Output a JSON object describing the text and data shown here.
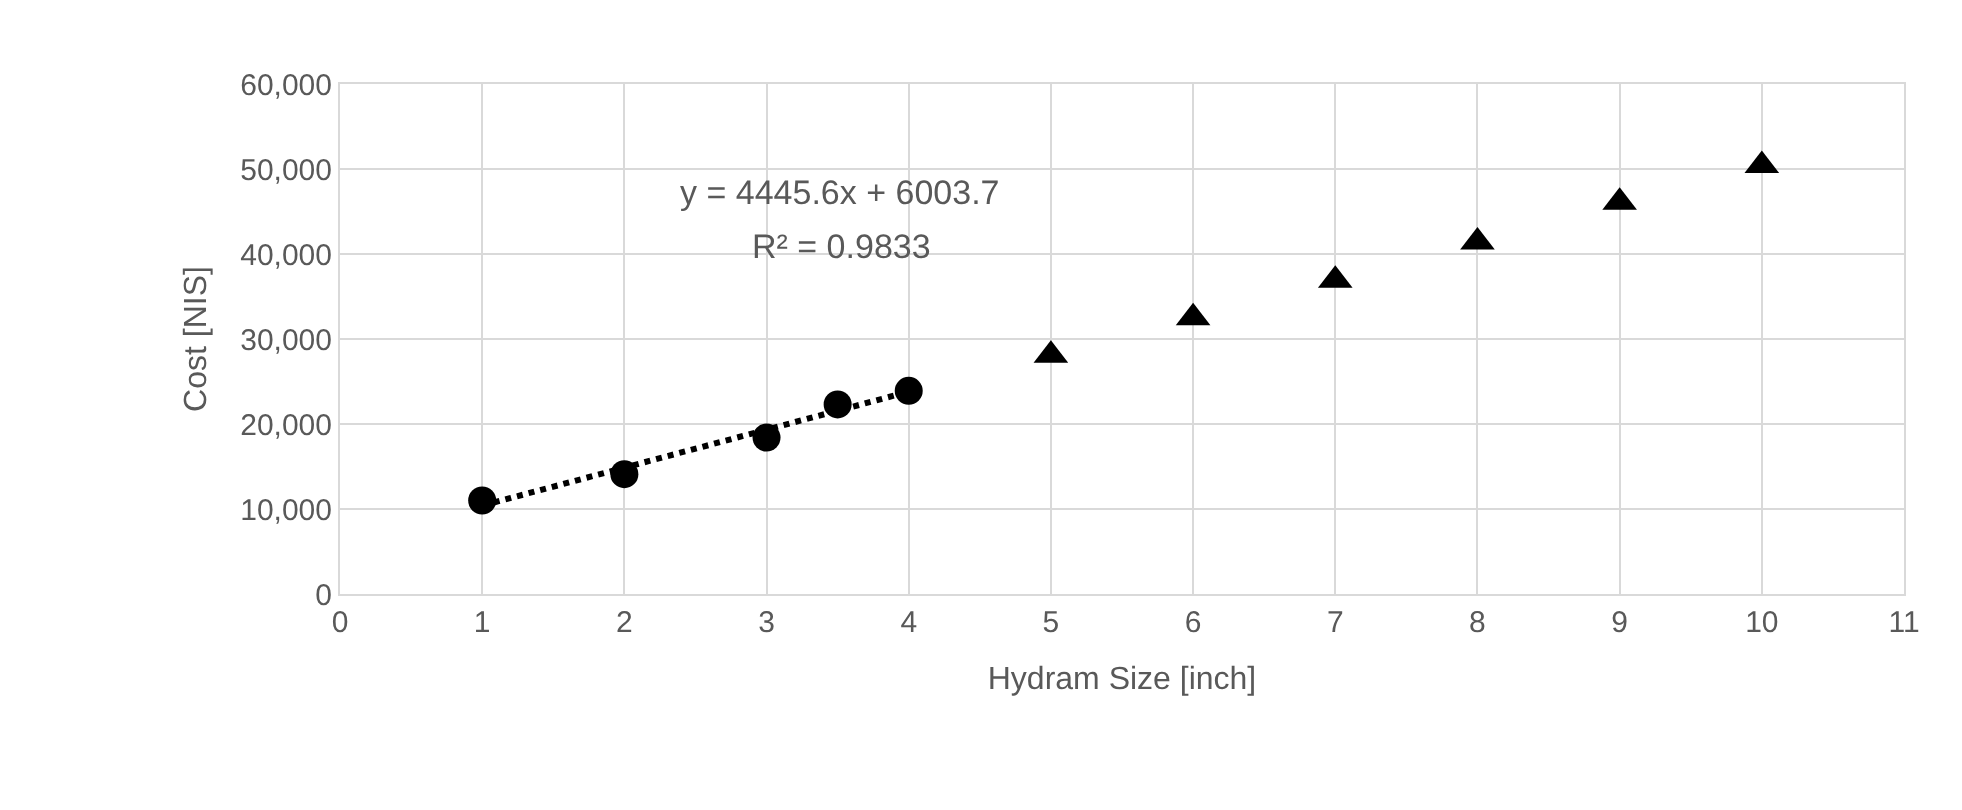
{
  "chart_data": {
    "type": "scatter",
    "xlabel": "Hydram Size [inch]",
    "ylabel": "Cost [NIS]",
    "xlim": [
      0,
      11
    ],
    "xticks": [
      0,
      1,
      2,
      3,
      4,
      5,
      6,
      7,
      8,
      9,
      10,
      11
    ],
    "ylim": [
      0,
      60000
    ],
    "yticks": [
      {
        "value": 0,
        "label": "0"
      },
      {
        "value": 10000,
        "label": "10,000"
      },
      {
        "value": 20000,
        "label": "20,000"
      },
      {
        "value": 30000,
        "label": "30,000"
      },
      {
        "value": 40000,
        "label": "40,000"
      },
      {
        "value": 50000,
        "label": "50,000"
      },
      {
        "value": 60000,
        "label": "60,000"
      }
    ],
    "grid": true,
    "series": [
      {
        "marker": "circle",
        "color": "#000000",
        "x": [
          1,
          2,
          3,
          3.5,
          4
        ],
        "values": [
          11000,
          14100,
          18400,
          22300,
          23900
        ]
      },
      {
        "marker": "triangle",
        "color": "#000000",
        "x": [
          5,
          6,
          7,
          8,
          9,
          10
        ],
        "values": [
          28100,
          32500,
          36900,
          41400,
          46100,
          50400
        ]
      },
      {
        "type": "line",
        "marker": "none",
        "line_style": "dotted",
        "color": "#000000",
        "x": [
          1,
          4
        ],
        "values": [
          10400,
          23800
        ]
      }
    ],
    "annotations": [
      "y = 4445.6x + 6003.7",
      "R² = 0.9833"
    ]
  }
}
